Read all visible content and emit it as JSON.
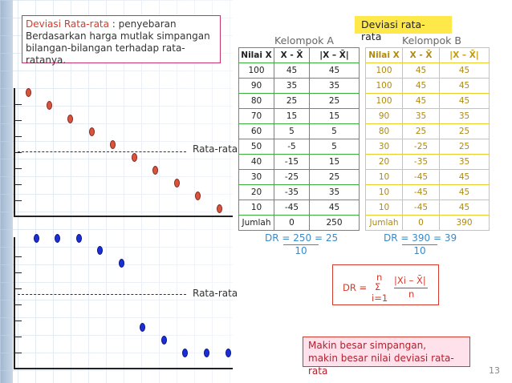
{
  "definition": {
    "term": "Deviasi Rata-rata",
    "rest": " : penyebaran Berdasarkan harga mutlak simpangan bilangan-bilangan terhadap rata-ratanya."
  },
  "header": {
    "title": "Deviasi rata-rata"
  },
  "chart": {
    "label_top": "Rata-rata",
    "label_bottom": "Rata-rata"
  },
  "group_a": {
    "title": "Kelompok A",
    "headers": [
      "Nilai X",
      "X - X̄",
      "|X – X̄|"
    ],
    "rows": [
      [
        "100",
        "45",
        "45"
      ],
      [
        "90",
        "35",
        "35"
      ],
      [
        "80",
        "25",
        "25"
      ],
      [
        "70",
        "15",
        "15"
      ],
      [
        "60",
        "5",
        "5"
      ],
      [
        "50",
        "-5",
        "5"
      ],
      [
        "40",
        "-15",
        "15"
      ],
      [
        "30",
        "-25",
        "25"
      ],
      [
        "20",
        "-35",
        "35"
      ],
      [
        "10",
        "-45",
        "45"
      ],
      [
        "Jumlah",
        "0",
        "250"
      ]
    ],
    "dr_line": "DR = 250 = 25",
    "dr_den": "10"
  },
  "group_b": {
    "title": "Kelompok B",
    "headers": [
      "Nilai X",
      "X - X̄",
      "|X – X̄|"
    ],
    "rows": [
      [
        "100",
        "45",
        "45"
      ],
      [
        "100",
        "45",
        "45"
      ],
      [
        "100",
        "45",
        "45"
      ],
      [
        "90",
        "35",
        "35"
      ],
      [
        "80",
        "25",
        "25"
      ],
      [
        "30",
        "-25",
        "25"
      ],
      [
        "20",
        "-35",
        "35"
      ],
      [
        "10",
        "-45",
        "45"
      ],
      [
        "10",
        "-45",
        "45"
      ],
      [
        "10",
        "-45",
        "45"
      ],
      [
        "Jumlah",
        "0",
        "390"
      ]
    ],
    "dr_line": "DR = 390 = 39",
    "dr_den": "10"
  },
  "formula": {
    "lhs": "DR =",
    "upper": "n",
    "sigma": "Σ",
    "lower": "i=1",
    "numerator": "|Xi – X̄|",
    "denominator": "n"
  },
  "note": {
    "line1": "Makin besar simpangan,",
    "line2": "makin besar nilai deviasi rata-rata"
  },
  "page_number": "13",
  "colors": {
    "red_dot": "#d9533e",
    "blue_dot": "#1a2fd6",
    "green": "#3cae3a",
    "gold": "#e9cd2a"
  }
}
